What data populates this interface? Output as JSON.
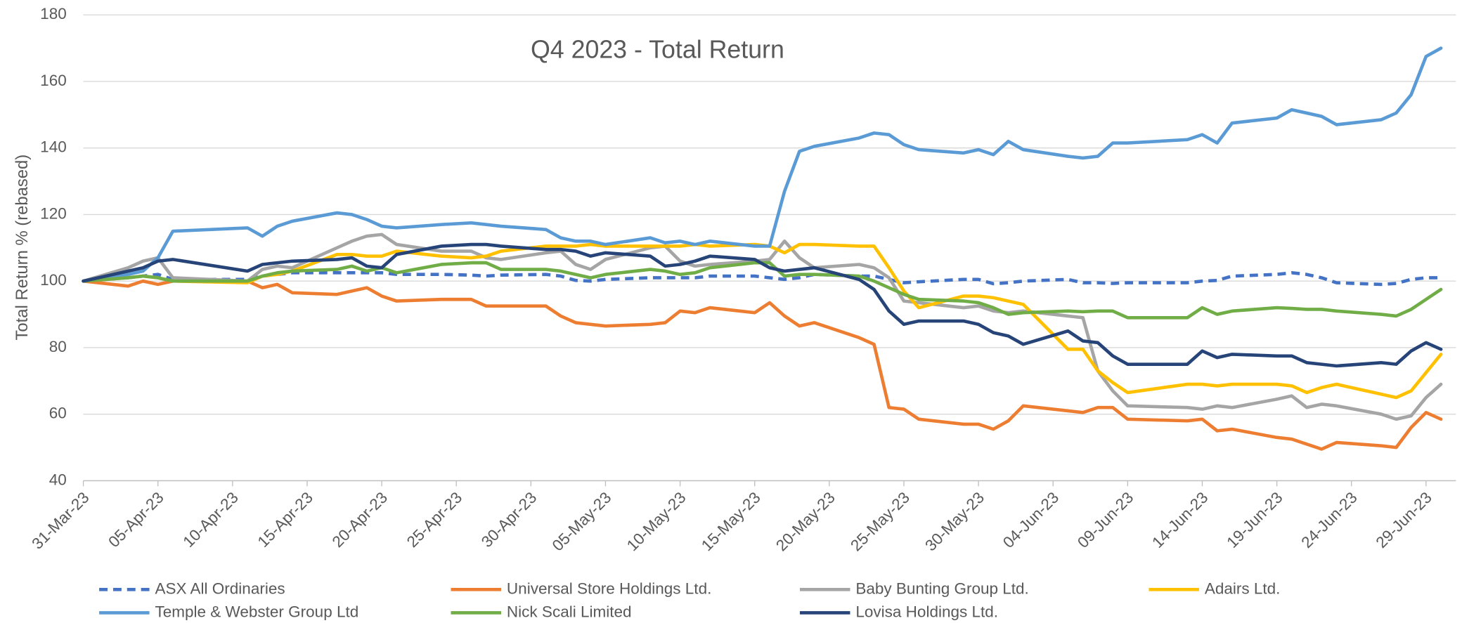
{
  "chart_data": {
    "type": "line",
    "title": "Q4 2023 - Total Return",
    "y_label": "Total Return % (rebased)",
    "x": [
      "2023-03-31",
      "2023-04-03",
      "2023-04-04",
      "2023-04-05",
      "2023-04-06",
      "2023-04-11",
      "2023-04-12",
      "2023-04-13",
      "2023-04-14",
      "2023-04-17",
      "2023-04-18",
      "2023-04-19",
      "2023-04-20",
      "2023-04-21",
      "2023-04-24",
      "2023-04-26",
      "2023-04-27",
      "2023-04-28",
      "2023-05-01",
      "2023-05-02",
      "2023-05-03",
      "2023-05-04",
      "2023-05-05",
      "2023-05-08",
      "2023-05-09",
      "2023-05-10",
      "2023-05-11",
      "2023-05-12",
      "2023-05-15",
      "2023-05-16",
      "2023-05-17",
      "2023-05-18",
      "2023-05-19",
      "2023-05-22",
      "2023-05-23",
      "2023-05-24",
      "2023-05-25",
      "2023-05-26",
      "2023-05-29",
      "2023-05-30",
      "2023-05-31",
      "2023-06-01",
      "2023-06-02",
      "2023-06-05",
      "2023-06-06",
      "2023-06-07",
      "2023-06-08",
      "2023-06-09",
      "2023-06-13",
      "2023-06-14",
      "2023-06-15",
      "2023-06-16",
      "2023-06-19",
      "2023-06-20",
      "2023-06-21",
      "2023-06-22",
      "2023-06-23",
      "2023-06-26",
      "2023-06-27",
      "2023-06-28",
      "2023-06-29",
      "2023-06-30"
    ],
    "series": [
      {
        "name": "ASX All Ordinaries",
        "color": "#4472c4",
        "line_style": "dashed",
        "values": [
          100,
          101,
          101.5,
          102,
          100.5,
          100.5,
          101.5,
          102,
          102.5,
          102.5,
          102.5,
          102.5,
          102.5,
          102,
          102,
          101.8,
          101.5,
          101.8,
          102,
          101.5,
          100.2,
          100,
          100.5,
          101,
          101,
          101,
          101,
          101.5,
          101.5,
          101,
          100.5,
          101,
          102,
          101.5,
          101.5,
          100.5,
          99.5,
          99.8,
          100.5,
          100.5,
          99.2,
          99.5,
          100,
          100.5,
          99.5,
          99.5,
          99.3,
          99.5,
          99.5,
          100,
          100.2,
          101.5,
          102,
          102.5,
          102,
          101,
          99.5,
          99,
          99.3,
          100.5,
          101,
          101
        ]
      },
      {
        "name": "Universal Store Holdings Ltd.",
        "color": "#ed7d31",
        "line_style": "solid",
        "values": [
          100,
          98.5,
          100,
          99,
          100,
          100,
          98,
          99,
          96.5,
          96,
          97,
          98,
          95.5,
          94,
          94.5,
          94.5,
          92.5,
          92.5,
          92.5,
          89.5,
          87.5,
          87,
          86.5,
          87,
          87.5,
          91,
          90.5,
          92,
          90.5,
          93.5,
          89.5,
          86.5,
          87.5,
          83,
          81,
          62,
          61.5,
          58.5,
          57,
          57,
          55.5,
          58,
          62.5,
          61,
          60.5,
          62,
          62,
          58.5,
          58,
          58.5,
          55,
          55.5,
          53,
          52.5,
          51,
          49.5,
          51.5,
          50.5,
          50,
          56,
          60.5,
          58.5
        ]
      },
      {
        "name": "Baby Bunting Group Ltd.",
        "color": "#a5a5a5",
        "line_style": "solid",
        "values": [
          100,
          104,
          106,
          107,
          101,
          100,
          103.5,
          104.5,
          104,
          110,
          112,
          113.5,
          114,
          111,
          109,
          109,
          107,
          106.5,
          108.5,
          109,
          105,
          103.5,
          106.5,
          110,
          110.5,
          106,
          104.5,
          105,
          106,
          106.5,
          112,
          107,
          104,
          105,
          104,
          101,
          94,
          93.5,
          92,
          92.5,
          91,
          90.5,
          91,
          89.5,
          89,
          73,
          67,
          62.5,
          62,
          61.5,
          62.5,
          62,
          64.5,
          65.5,
          62,
          63,
          62.5,
          60,
          58.5,
          59.5,
          65,
          69
        ]
      },
      {
        "name": "Adairs Ltd.",
        "color": "#ffc000",
        "line_style": "solid",
        "values": [
          100,
          101,
          101.5,
          101,
          100,
          99.5,
          101.5,
          102,
          103,
          108,
          108,
          107.5,
          107.5,
          109,
          107.5,
          107,
          107.5,
          109,
          110.5,
          110.5,
          110.5,
          111,
          110.5,
          110.5,
          110.5,
          110.5,
          111,
          110.5,
          111,
          110.5,
          108.5,
          111,
          111,
          110.5,
          110.5,
          104,
          97,
          92,
          95.5,
          95.5,
          95,
          94,
          93,
          79.5,
          79.5,
          73,
          69.5,
          66.5,
          69,
          69,
          68.5,
          69,
          69,
          68.5,
          66.5,
          68,
          69,
          66,
          65,
          67,
          72.5,
          78
        ]
      },
      {
        "name": "Temple & Webster Group Ltd",
        "color": "#5b9bd5",
        "line_style": "solid",
        "values": [
          100,
          102,
          103,
          107,
          115,
          116,
          113.5,
          116.5,
          118,
          120.5,
          120,
          118.5,
          116.5,
          116,
          117,
          117.5,
          117,
          116.5,
          115.5,
          113,
          112,
          112,
          111,
          113,
          111.5,
          112,
          111,
          112,
          110.5,
          110.5,
          127,
          139,
          140.5,
          143,
          144.5,
          144,
          141,
          139.5,
          138.5,
          139.5,
          138,
          142,
          139.5,
          137.5,
          137,
          137.5,
          141.5,
          141.5,
          142.5,
          144,
          141.5,
          147.5,
          149,
          151.5,
          150.5,
          149.5,
          147,
          148.5,
          150.5,
          156,
          167.5,
          170
        ]
      },
      {
        "name": "Nick Scali Limited",
        "color": "#70ad47",
        "line_style": "solid",
        "values": [
          100,
          101,
          101.5,
          101,
          100,
          100,
          101.5,
          102.5,
          103,
          103.5,
          104.5,
          103,
          104,
          102.5,
          105,
          105.5,
          105.5,
          103.5,
          103.5,
          103,
          102,
          101,
          102,
          103.5,
          103,
          102,
          102.5,
          104,
          105.5,
          105.5,
          101.5,
          102,
          102,
          101.5,
          100,
          98,
          96,
          94.5,
          94,
          93.5,
          92,
          90,
          90.5,
          91,
          90.8,
          91,
          91,
          89,
          89,
          92,
          90,
          91,
          92,
          91.8,
          91.5,
          91.5,
          91,
          90,
          89.5,
          91.5,
          94.5,
          97.5
        ]
      },
      {
        "name": "Lovisa Holdings Ltd.",
        "color": "#264478",
        "line_style": "solid",
        "values": [
          100,
          103,
          104,
          106,
          106.5,
          103,
          105,
          105.5,
          106,
          106.5,
          107,
          104.5,
          104,
          108,
          110.5,
          111,
          111,
          110.5,
          109.5,
          109.5,
          109,
          107.5,
          108.5,
          107.5,
          104.5,
          105,
          106,
          107.5,
          106.5,
          104,
          103,
          103.5,
          104,
          100.5,
          97.5,
          91,
          87,
          88,
          88,
          87,
          84.5,
          83.5,
          81,
          85,
          82,
          81.5,
          77.5,
          75,
          75,
          79,
          77,
          78,
          77.5,
          77.5,
          75.5,
          75,
          74.5,
          75.5,
          75,
          79,
          81.5,
          79.5
        ]
      }
    ],
    "xlim": [
      "2023-03-31",
      "2023-07-01"
    ],
    "xticks": [
      {
        "value": "2023-03-31",
        "label": "31-Mar-23"
      },
      {
        "value": "2023-04-05",
        "label": "05-Apr-23"
      },
      {
        "value": "2023-04-10",
        "label": "10-Apr-23"
      },
      {
        "value": "2023-04-15",
        "label": "15-Apr-23"
      },
      {
        "value": "2023-04-20",
        "label": "20-Apr-23"
      },
      {
        "value": "2023-04-25",
        "label": "25-Apr-23"
      },
      {
        "value": "2023-04-30",
        "label": "30-Apr-23"
      },
      {
        "value": "2023-05-05",
        "label": "05-May-23"
      },
      {
        "value": "2023-05-10",
        "label": "10-May-23"
      },
      {
        "value": "2023-05-15",
        "label": "15-May-23"
      },
      {
        "value": "2023-05-20",
        "label": "20-May-23"
      },
      {
        "value": "2023-05-25",
        "label": "25-May-23"
      },
      {
        "value": "2023-05-30",
        "label": "30-May-23"
      },
      {
        "value": "2023-06-04",
        "label": "04-Jun-23"
      },
      {
        "value": "2023-06-09",
        "label": "09-Jun-23"
      },
      {
        "value": "2023-06-14",
        "label": "14-Jun-23"
      },
      {
        "value": "2023-06-19",
        "label": "19-Jun-23"
      },
      {
        "value": "2023-06-24",
        "label": "24-Jun-23"
      },
      {
        "value": "2023-06-29",
        "label": "29-Jun-23"
      }
    ],
    "ylim": [
      40,
      180
    ],
    "yticks": [
      40,
      60,
      80,
      100,
      120,
      140,
      160,
      180
    ],
    "grid": true,
    "legend": "bottom"
  }
}
